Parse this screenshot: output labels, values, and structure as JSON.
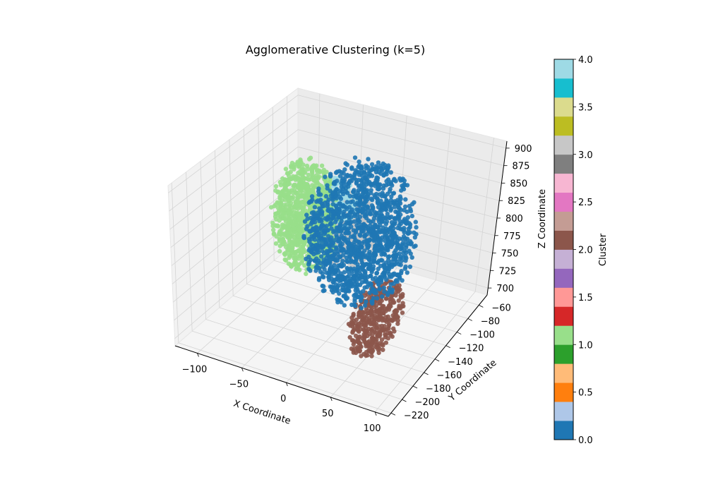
{
  "chart_data": {
    "type": "scatter",
    "projection": "3d",
    "title": "Agglomerative Clustering (k=5)",
    "xlabel": "X Coordinate",
    "ylabel": "Y Coordinate",
    "zlabel": "Z Coordinate",
    "x_ticks": [
      -100,
      -50,
      0,
      50,
      100
    ],
    "y_ticks": [
      -60,
      -80,
      -100,
      -120,
      -140,
      -160,
      -180,
      -200,
      -220
    ],
    "z_ticks": [
      700,
      725,
      750,
      775,
      800,
      825,
      850,
      875,
      900
    ],
    "xlim": [
      -125,
      115
    ],
    "ylim": [
      -225,
      -45
    ],
    "zlim": [
      690,
      910
    ],
    "grid": true,
    "colormap": "tab20",
    "colorbar": {
      "label": "Cluster",
      "ticks": [
        0.0,
        0.5,
        1.0,
        1.5,
        2.0,
        2.5,
        3.0,
        3.5,
        4.0
      ],
      "tick_labels": [
        "0.0",
        "0.5",
        "1.0",
        "1.5",
        "2.0",
        "2.5",
        "3.0",
        "3.5",
        "4.0"
      ],
      "range": [
        0,
        4
      ],
      "colors": [
        "#1f77b4",
        "#aec7e8",
        "#ff7f0e",
        "#ffbb78",
        "#2ca02c",
        "#98df8a",
        "#d62728",
        "#ff9896",
        "#9467bd",
        "#c5b0d5",
        "#8c564b",
        "#c49c94",
        "#e377c2",
        "#f7b6d2",
        "#7f7f7f",
        "#c7c7c7",
        "#bcbd22",
        "#dbdb8d",
        "#17becf",
        "#9edae5"
      ]
    },
    "clusters": [
      {
        "cluster": 0,
        "color": "#1f77b4",
        "x_range": [
          -45,
          70
        ],
        "y_range": [
          -170,
          -60
        ],
        "z_range": [
          715,
          905
        ]
      },
      {
        "cluster": 1,
        "color": "#98df8a",
        "x_range": [
          -110,
          -40
        ],
        "y_range": [
          -120,
          -60
        ],
        "z_range": [
          700,
          860
        ]
      },
      {
        "cluster": 2,
        "color": "#8c564b",
        "x_range": [
          40,
          80
        ],
        "y_range": [
          -200,
          -120
        ],
        "z_range": [
          700,
          790
        ]
      },
      {
        "cluster": 3,
        "color": "#c7c7c7",
        "x_range": [
          -40,
          20
        ],
        "y_range": [
          -130,
          -80
        ],
        "z_range": [
          745,
          845
        ]
      },
      {
        "cluster": 4,
        "color": "#9edae5",
        "x_range": [
          -50,
          -10
        ],
        "y_range": [
          -110,
          -80
        ],
        "z_range": [
          780,
          855
        ]
      }
    ]
  }
}
